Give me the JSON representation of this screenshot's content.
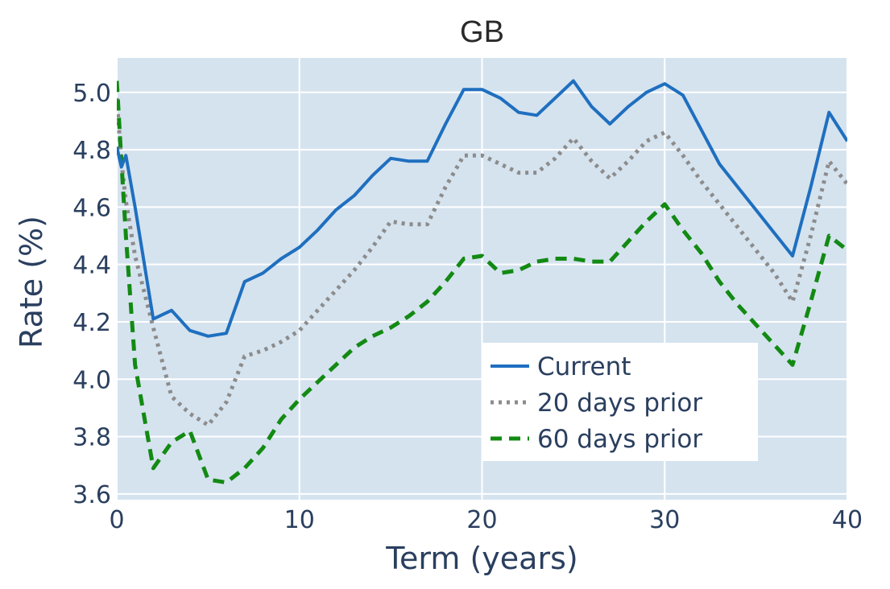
{
  "chart_data": {
    "type": "line",
    "title": "GB",
    "xlabel": "Term (years)",
    "ylabel": "Rate (%)",
    "xlim": [
      0,
      40
    ],
    "ylim": [
      3.58,
      5.12
    ],
    "xticks": [
      0,
      10,
      20,
      30,
      40
    ],
    "xtick_labels": [
      "0",
      "10",
      "20",
      "30",
      "40"
    ],
    "yticks": [
      3.6,
      3.8,
      4.0,
      4.2,
      4.4,
      4.6,
      4.8,
      5.0
    ],
    "ytick_labels": [
      "3.6",
      "3.8",
      "4.0",
      "4.2",
      "4.4",
      "4.6",
      "4.8",
      "5.0"
    ],
    "grid": true,
    "legend_position": "bottom-right",
    "background_color": "#d5e3ef",
    "series": [
      {
        "name": "Current",
        "color": "#1f6fbf",
        "dash": "solid",
        "x": [
          0,
          0.25,
          0.5,
          1,
          2,
          3,
          4,
          5,
          6,
          7,
          8,
          9,
          10,
          11,
          12,
          13,
          14,
          15,
          16,
          17,
          18,
          19,
          20,
          21,
          22,
          23,
          24,
          25,
          26,
          27,
          28,
          29,
          30,
          31,
          32,
          33,
          34,
          35,
          36,
          37,
          38,
          39,
          40
        ],
        "y": [
          4.81,
          4.74,
          4.78,
          4.6,
          4.21,
          4.24,
          4.17,
          4.15,
          4.16,
          4.34,
          4.37,
          4.42,
          4.46,
          4.52,
          4.59,
          4.64,
          4.71,
          4.77,
          4.76,
          4.76,
          4.89,
          5.01,
          5.01,
          4.98,
          4.93,
          4.92,
          4.98,
          5.04,
          4.95,
          4.89,
          4.95,
          5.0,
          5.03,
          4.99,
          4.87,
          4.75,
          4.67,
          4.59,
          4.51,
          4.43,
          4.67,
          4.93,
          4.83
        ]
      },
      {
        "name": "20 days prior",
        "color": "#8c8c8c",
        "dash": "dot",
        "x": [
          0,
          0.25,
          0.5,
          1,
          2,
          3,
          4,
          5,
          6,
          7,
          8,
          9,
          10,
          11,
          12,
          13,
          14,
          15,
          16,
          17,
          18,
          19,
          20,
          21,
          22,
          23,
          24,
          25,
          26,
          27,
          28,
          29,
          30,
          31,
          32,
          33,
          34,
          35,
          36,
          37,
          38,
          39,
          40
        ],
        "y": [
          4.98,
          4.76,
          4.62,
          4.43,
          4.18,
          3.94,
          3.88,
          3.84,
          3.92,
          4.08,
          4.1,
          4.13,
          4.17,
          4.24,
          4.31,
          4.38,
          4.46,
          4.55,
          4.54,
          4.54,
          4.67,
          4.78,
          4.78,
          4.75,
          4.72,
          4.72,
          4.77,
          4.84,
          4.76,
          4.7,
          4.76,
          4.83,
          4.86,
          4.78,
          4.69,
          4.61,
          4.53,
          4.45,
          4.37,
          4.27,
          4.5,
          4.76,
          4.68
        ]
      },
      {
        "name": "60 days prior",
        "color": "#138a13",
        "dash": "dash",
        "x": [
          0,
          0.25,
          0.5,
          1,
          2,
          3,
          4,
          5,
          6,
          7,
          8,
          9,
          10,
          11,
          12,
          13,
          14,
          15,
          16,
          17,
          18,
          19,
          20,
          21,
          22,
          23,
          24,
          25,
          26,
          27,
          28,
          29,
          30,
          31,
          32,
          33,
          34,
          35,
          36,
          37,
          38,
          39,
          40
        ],
        "y": [
          5.04,
          4.76,
          4.5,
          4.05,
          3.69,
          3.78,
          3.82,
          3.65,
          3.64,
          3.69,
          3.76,
          3.86,
          3.93,
          3.99,
          4.05,
          4.11,
          4.15,
          4.18,
          4.22,
          4.27,
          4.34,
          4.42,
          4.43,
          4.37,
          4.38,
          4.41,
          4.42,
          4.42,
          4.41,
          4.41,
          4.48,
          4.55,
          4.61,
          4.52,
          4.44,
          4.34,
          4.26,
          4.19,
          4.12,
          4.05,
          4.27,
          4.5,
          4.45
        ]
      }
    ]
  }
}
